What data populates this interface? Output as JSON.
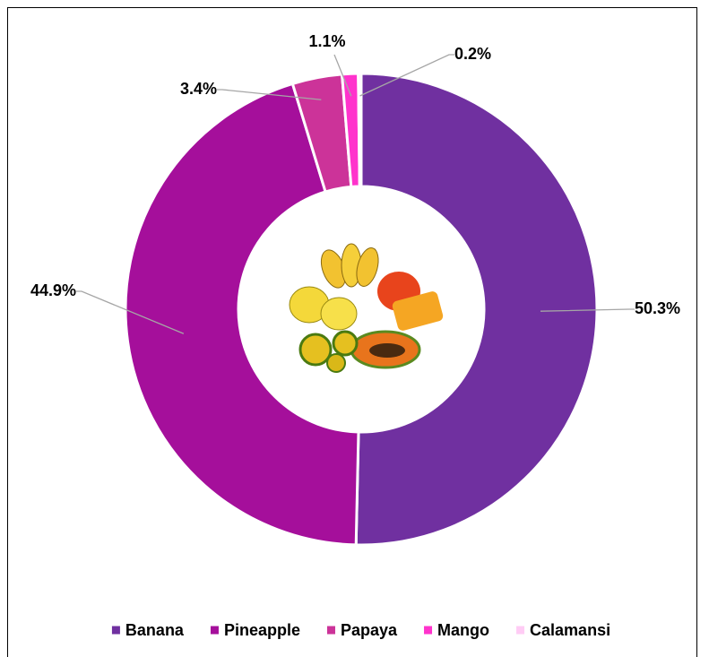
{
  "chart_data": {
    "type": "donut",
    "series": [
      {
        "categories": [
          "Banana",
          "Pineapple",
          "Papaya",
          "Mango",
          "Calamansi"
        ],
        "values": [
          50.3,
          44.9,
          3.4,
          1.1,
          0.2
        ],
        "value_labels": [
          "50.3%",
          "44.9%",
          "3.4%",
          "1.1%",
          "0.2%"
        ],
        "colors": [
          "#7030a0",
          "#a50f9b",
          "#cc3399",
          "#ff33cc",
          "#ffccf5"
        ]
      }
    ],
    "legend": "bottom"
  }
}
